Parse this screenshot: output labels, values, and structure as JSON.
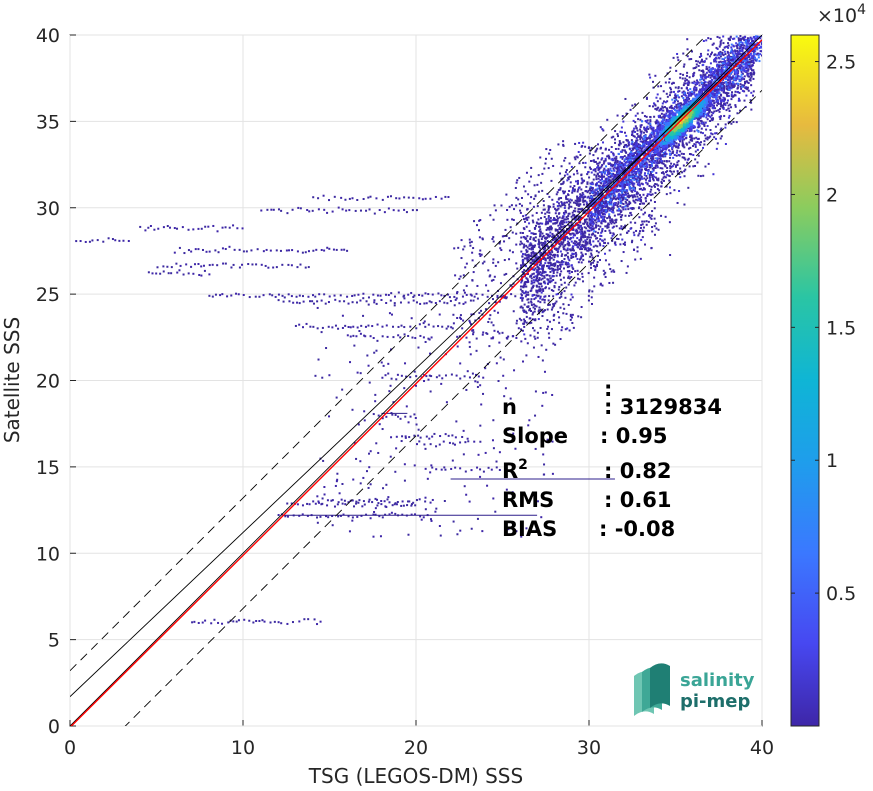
{
  "chart_data": {
    "type": "heatmap",
    "xlabel": "TSG (LEGOS-DM) SSS",
    "ylabel": "Satellite SSS",
    "xlim": [
      0,
      40
    ],
    "ylim": [
      0,
      40
    ],
    "x_ticks": [
      0,
      10,
      20,
      30,
      40
    ],
    "y_ticks": [
      0,
      5,
      10,
      15,
      20,
      25,
      30,
      35,
      40
    ],
    "grid": true,
    "colorscale": "parula",
    "colorbar": {
      "range": [
        0,
        26000
      ],
      "ticks": [
        {
          "value": 5000,
          "label": "0.5"
        },
        {
          "value": 10000,
          "label": "1"
        },
        {
          "value": 15000,
          "label": "1.5"
        },
        {
          "value": 20000,
          "label": "2"
        },
        {
          "value": 25000,
          "label": "2.5"
        }
      ],
      "exponent_label": "×10",
      "exponent_power": "4"
    },
    "reference_lines": {
      "identity": {
        "slope": 1,
        "intercept": 0,
        "color": "#000000",
        "style": "solid"
      },
      "identity_upper": {
        "slope": 1,
        "intercept": 3.2,
        "color": "#000000",
        "style": "dashed"
      },
      "identity_lower": {
        "slope": 1,
        "intercept": -3.2,
        "color": "#000000",
        "style": "dashed"
      },
      "fit": {
        "slope": 0.95,
        "intercept": 1.7,
        "color": "#000000",
        "style": "solid"
      },
      "regression": {
        "slope": 0.995,
        "intercept": -0.08,
        "color": "#ff0000",
        "style": "solid"
      }
    },
    "density_core": {
      "x_center": 35.3,
      "y_center": 35.1
    },
    "stats": [
      {
        "key": "n",
        "sep": ":",
        "value": "3129834"
      },
      {
        "key": "Slope",
        "sep": ":",
        "value": "0.95"
      },
      {
        "key": "R",
        "sup": "2",
        "sep": ":",
        "value": "0.82"
      },
      {
        "key": "RMS",
        "sep": ":",
        "value": "0.61"
      },
      {
        "key": "BIAS",
        "sep": ":",
        "value": "-0.08"
      }
    ],
    "extra_label": ":"
  },
  "logo": {
    "line1": "salinity",
    "line2": "pi-mep",
    "color1": "#3aa596",
    "color2": "#1d6e6a"
  }
}
